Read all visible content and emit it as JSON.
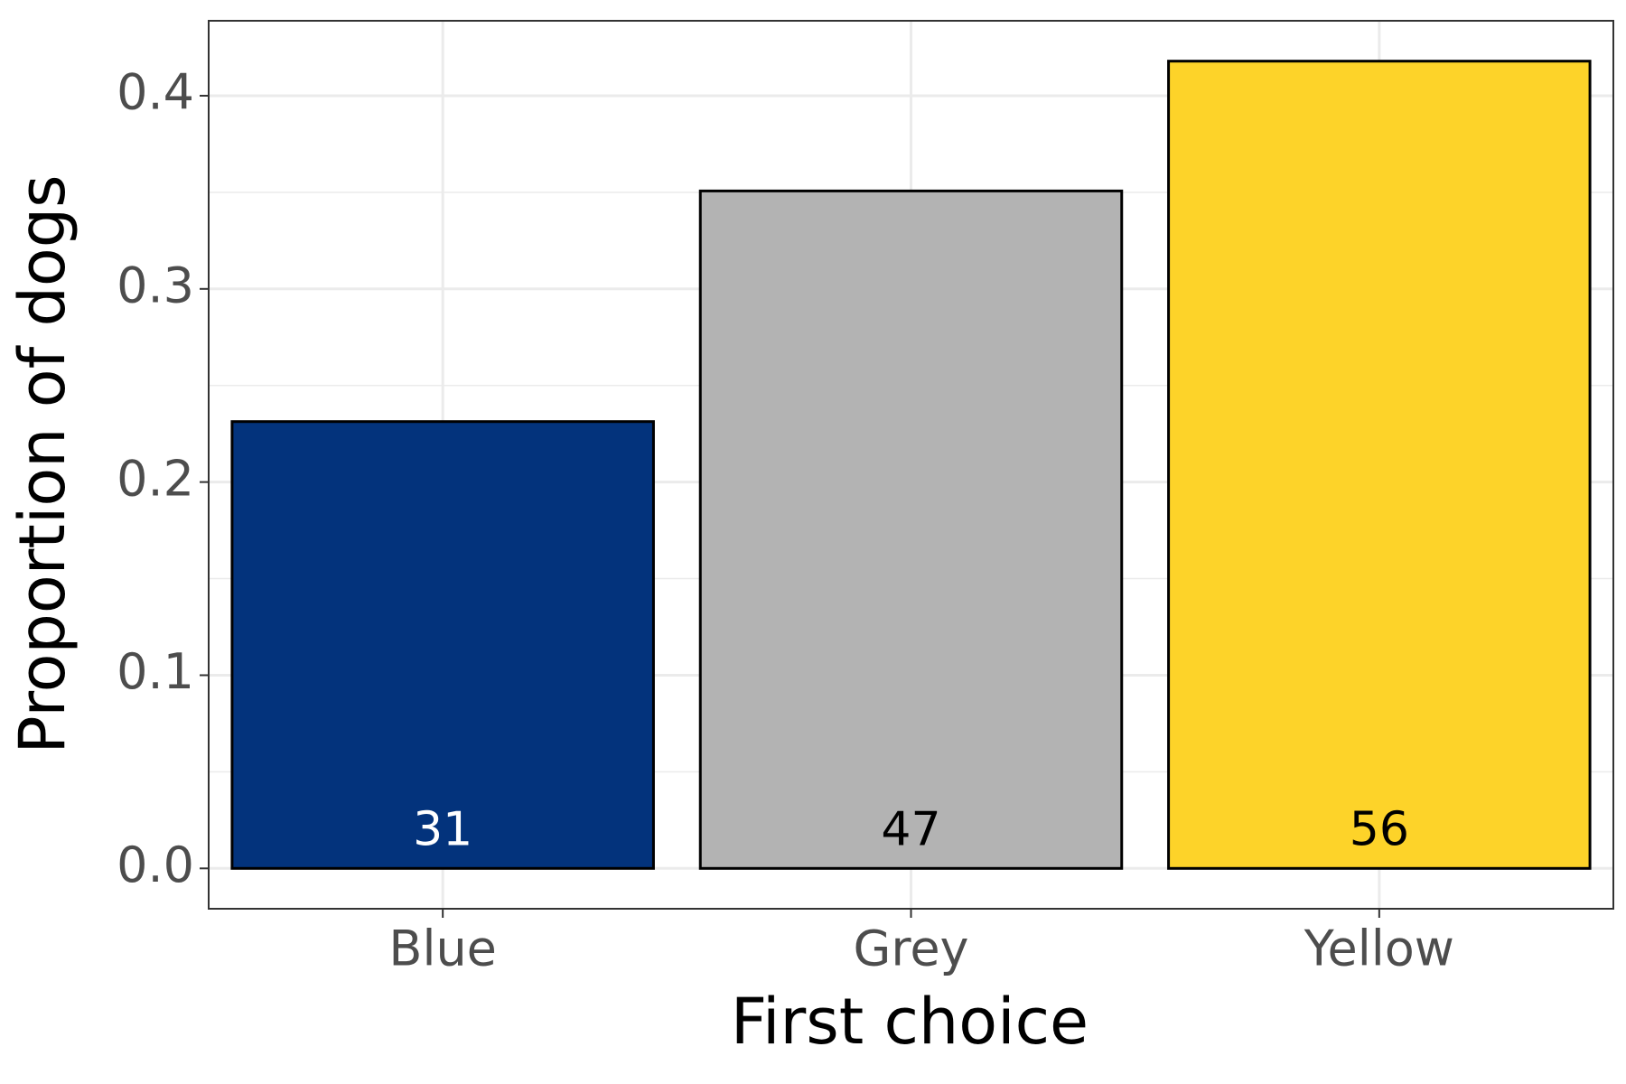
{
  "chart_data": {
    "type": "bar",
    "x_label": "First choice",
    "y_label": "Proportion of dogs",
    "categories": [
      "Blue",
      "Grey",
      "Yellow"
    ],
    "values": [
      0.2313,
      0.3507,
      0.4179
    ],
    "counts": [
      31,
      47,
      56
    ],
    "colors": [
      "#03337c",
      "#b3b3b3",
      "#fdd329"
    ],
    "ylim": [
      -0.0209,
      0.4388
    ],
    "yticks": [
      {
        "value": 0,
        "label": "0.0"
      },
      0.1,
      0.2,
      0.3,
      0.4
    ],
    "grid": true
  }
}
